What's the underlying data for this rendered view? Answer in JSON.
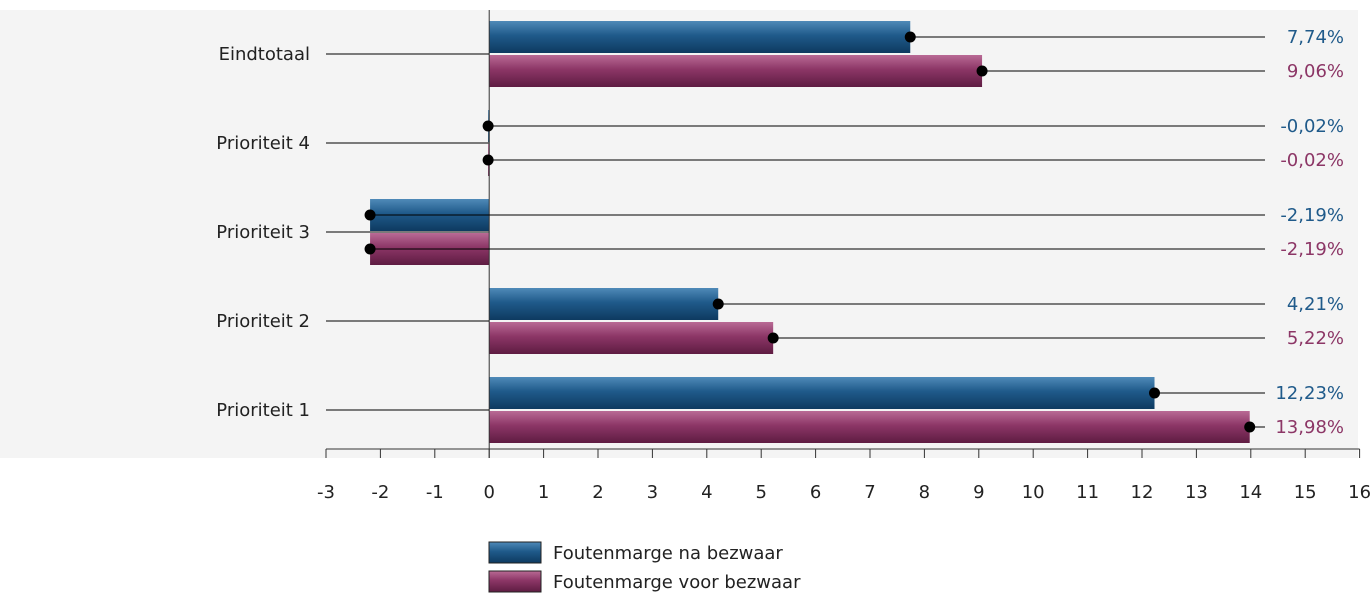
{
  "chart_data": {
    "type": "bar",
    "orientation": "horizontal",
    "categories": [
      "Eindtotaal",
      "Prioriteit 4",
      "Prioriteit 3",
      "Prioriteit 2",
      "Prioriteit 1"
    ],
    "series": [
      {
        "name": "Foutenmarge na bezwaar",
        "values": [
          7.74,
          -0.02,
          -2.19,
          4.21,
          12.23
        ],
        "labels": [
          "7,74%",
          "-0,02%",
          "-2,19%",
          "4,21%",
          "12,23%"
        ],
        "color": "#1f5a8a",
        "label_color": "#1f5a8a"
      },
      {
        "name": "Foutenmarge voor bezwaar",
        "values": [
          9.06,
          -0.02,
          -2.19,
          5.22,
          13.98
        ],
        "labels": [
          "9,06%",
          "-0,02%",
          "-2,19%",
          "5,22%",
          "13,98%"
        ],
        "color": "#8c3666",
        "label_color": "#8c3666"
      }
    ],
    "xlim": [
      -3,
      16
    ],
    "xticks": [
      -3,
      -2,
      -1,
      0,
      1,
      2,
      3,
      4,
      5,
      6,
      7,
      8,
      9,
      10,
      11,
      12,
      13,
      14,
      15,
      16
    ],
    "plot_background": "#f4f4f4",
    "grid": false,
    "legend_position": "bottom-center"
  }
}
